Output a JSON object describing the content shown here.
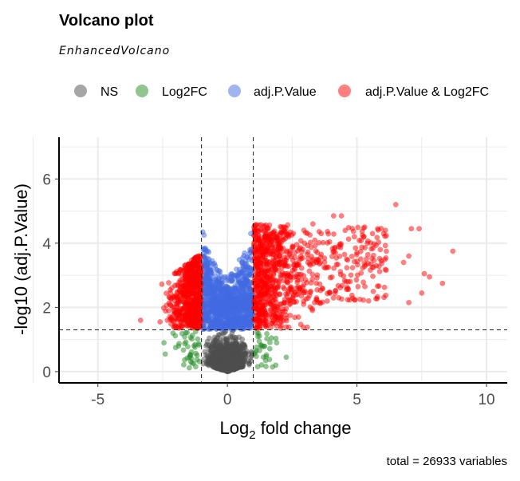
{
  "chart_data": {
    "type": "scatter",
    "title": "Volcano plot",
    "subtitle": "EnhancedVolcano",
    "xlabel_main": "Log",
    "xlabel_sub": "2",
    "xlabel_rest": " fold change",
    "ylabel": "-log10 (adj.P.Value)",
    "caption": "total = 26933 variables",
    "xlim": [
      -6.5,
      10.8
    ],
    "ylim": [
      -0.35,
      7.3
    ],
    "x_ticks": [
      -5,
      0,
      5,
      10
    ],
    "y_ticks": [
      0,
      2,
      4,
      6
    ],
    "grid": true,
    "legend_position": "top",
    "cutoffs": {
      "log2fc": 1,
      "neg_log10_p": 1.3
    },
    "series": [
      {
        "name": "NS",
        "color": "#4d4d4d"
      },
      {
        "name": "Log2FC",
        "color": "#228b22"
      },
      {
        "name": "adj.P.Value",
        "color": "#4169e1"
      },
      {
        "name": "adj.P.Value & Log2FC",
        "color": "#ff0000"
      }
    ],
    "highlight_points": [
      [
        6.5,
        5.2
      ],
      [
        8.7,
        3.75
      ],
      [
        8.3,
        2.75
      ],
      [
        7.1,
        4.45
      ],
      [
        7.4,
        4.45
      ],
      [
        7.0,
        3.6
      ],
      [
        7.6,
        3.05
      ],
      [
        7.8,
        2.95
      ],
      [
        7.5,
        2.45
      ],
      [
        7.0,
        2.15
      ],
      [
        5.6,
        4.3
      ],
      [
        5.8,
        4.45
      ],
      [
        6.1,
        4.4
      ],
      [
        4.1,
        4.85
      ],
      [
        4.4,
        4.85
      ],
      [
        5.3,
        4.5
      ],
      [
        4.9,
        4.2
      ],
      [
        3.3,
        4.6
      ],
      [
        -3.35,
        1.6
      ],
      [
        -2.6,
        1.55
      ],
      [
        -2.45,
        0.9
      ],
      [
        -2.4,
        0.55
      ],
      [
        -2.1,
        1.2
      ],
      [
        -2.0,
        0.75
      ],
      [
        1.9,
        0.9
      ],
      [
        1.7,
        1.05
      ],
      [
        -0.95,
        4.35
      ],
      [
        -0.9,
        4.25
      ],
      [
        0.9,
        4.3
      ],
      [
        6.8,
        3.4
      ],
      [
        5.9,
        3.8
      ],
      [
        5.4,
        4.0
      ],
      [
        4.6,
        3.5
      ],
      [
        3.9,
        3.25
      ],
      [
        4.3,
        2.3
      ]
    ]
  }
}
